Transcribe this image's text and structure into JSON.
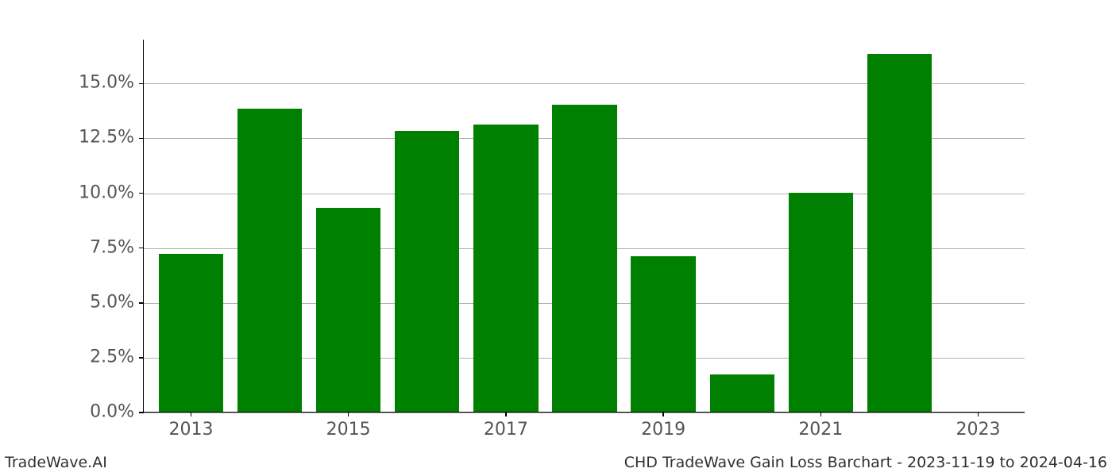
{
  "chart": {
    "type": "bar",
    "background_color": "#ffffff",
    "grid_color": "#b0b0b0",
    "axis_color": "#000000",
    "bar_color": "#008000",
    "tick_label_color": "#555555",
    "tick_label_fontsize": 22,
    "footer_fontsize": 19,
    "footer_color": "#303030",
    "ylim": [
      0,
      17.0
    ],
    "y_ticks": [
      0.0,
      2.5,
      5.0,
      7.5,
      10.0,
      12.5,
      15.0
    ],
    "y_tick_labels": [
      "0.0%",
      "2.5%",
      "5.0%",
      "7.5%",
      "10.0%",
      "12.5%",
      "15.0%"
    ],
    "x_categories": [
      2013,
      2014,
      2015,
      2016,
      2017,
      2018,
      2019,
      2020,
      2021,
      2022,
      2023
    ],
    "x_tick_values": [
      2013,
      2015,
      2017,
      2019,
      2021,
      2023
    ],
    "x_tick_labels": [
      "2013",
      "2015",
      "2017",
      "2019",
      "2021",
      "2023"
    ],
    "x_range": [
      2012.4,
      2023.6
    ],
    "bar_width_years": 0.82,
    "values": [
      7.2,
      13.8,
      9.3,
      12.8,
      13.1,
      14.0,
      7.1,
      1.7,
      10.0,
      16.3,
      0.0
    ]
  },
  "footer": {
    "left": "TradeWave.AI",
    "right": "CHD TradeWave Gain Loss Barchart - 2023-11-19 to 2024-04-16"
  }
}
